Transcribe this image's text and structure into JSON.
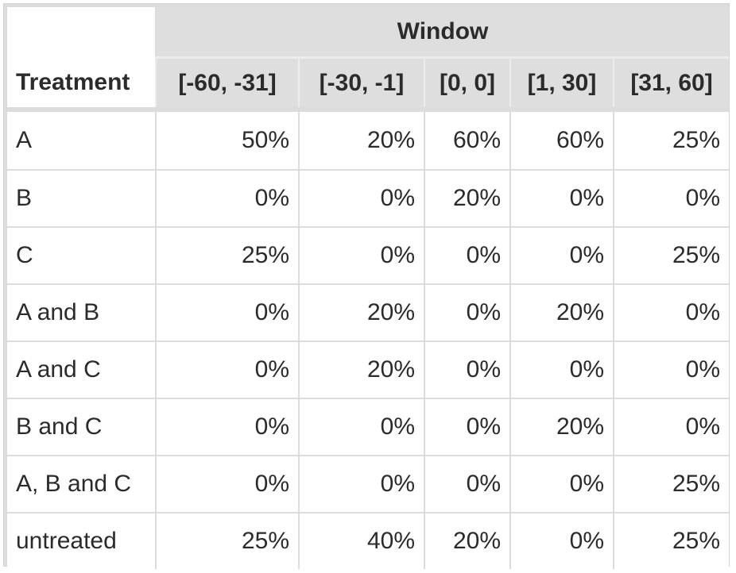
{
  "chart_data": {
    "type": "table",
    "title": "",
    "row_header": "Treatment",
    "column_group_label": "Window",
    "columns": [
      "[-60, -31]",
      "[-30, -1]",
      "[0, 0]",
      "[1, 30]",
      "[31, 60]"
    ],
    "rows": [
      {
        "label": "A",
        "values": [
          "50%",
          "20%",
          "60%",
          "60%",
          "25%"
        ]
      },
      {
        "label": "B",
        "values": [
          "0%",
          "0%",
          "20%",
          "0%",
          "0%"
        ]
      },
      {
        "label": "C",
        "values": [
          "25%",
          "0%",
          "0%",
          "0%",
          "25%"
        ]
      },
      {
        "label": "A and B",
        "values": [
          "0%",
          "20%",
          "0%",
          "20%",
          "0%"
        ]
      },
      {
        "label": "A and C",
        "values": [
          "0%",
          "20%",
          "0%",
          "0%",
          "0%"
        ]
      },
      {
        "label": "B and C",
        "values": [
          "0%",
          "0%",
          "0%",
          "20%",
          "0%"
        ]
      },
      {
        "label": "A, B and C",
        "values": [
          "0%",
          "0%",
          "0%",
          "0%",
          "25%"
        ]
      },
      {
        "label": "untreated",
        "values": [
          "25%",
          "40%",
          "20%",
          "0%",
          "25%"
        ]
      }
    ],
    "colors": {
      "header_background": "#dedede",
      "cell_background": "#ffffff",
      "grid": "#dcdcdc",
      "text": "#2b2b2b"
    }
  }
}
